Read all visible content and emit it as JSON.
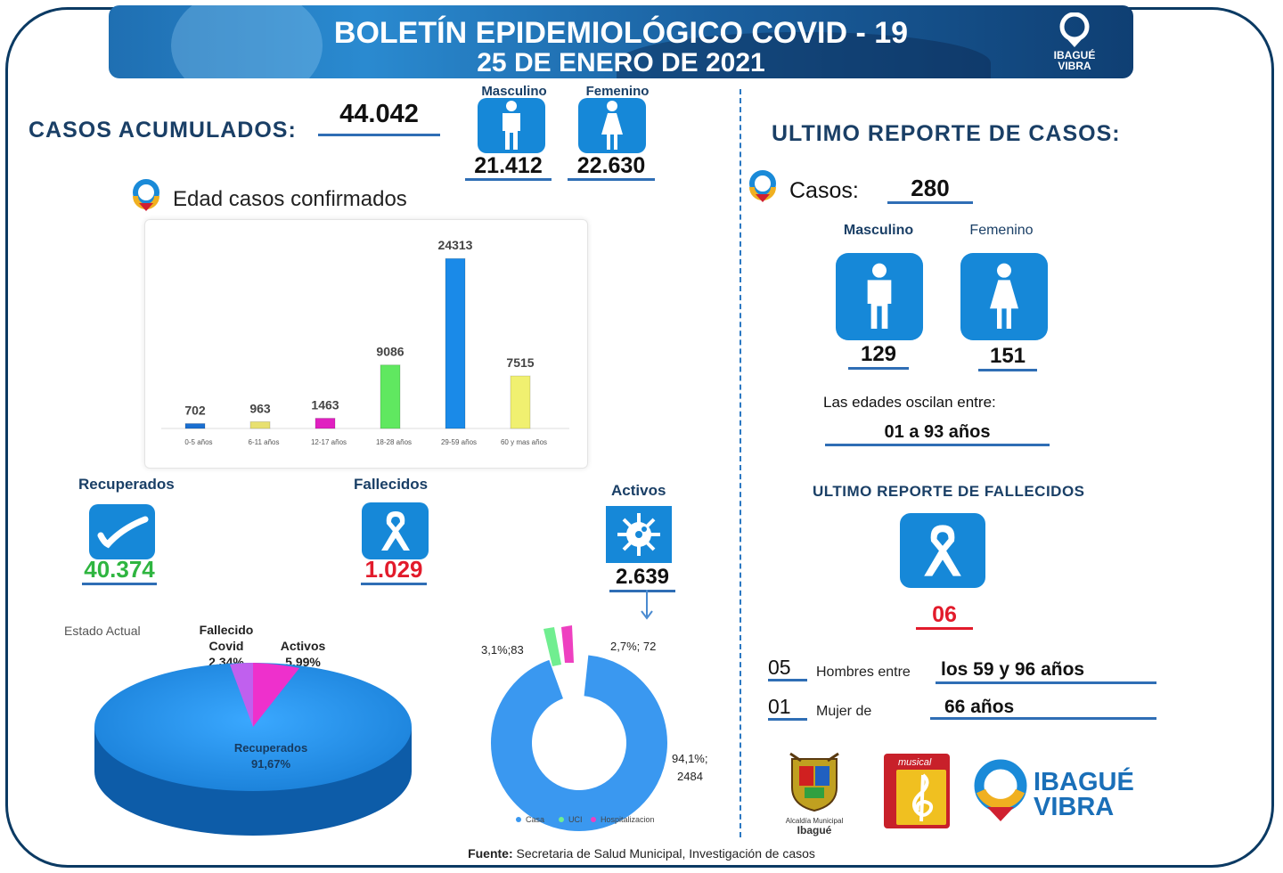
{
  "header": {
    "title": "BOLETÍN EPIDEMIOLÓGICO COVID - 19",
    "date": "25 DE ENERO DE 2021",
    "logo_line1": "IBAGUÉ",
    "logo_line2": "VIBRA"
  },
  "cumulative": {
    "label": "CASOS ACUMULADOS:",
    "total": "44.042",
    "male_label": "Masculino",
    "female_label": "Femenino",
    "male": "21.412",
    "female": "22.630"
  },
  "age_chart": {
    "title": "Edad casos confirmados"
  },
  "chart_data": [
    {
      "type": "bar",
      "title": "Edad casos confirmados",
      "categories": [
        "0-5 años",
        "6-11 años",
        "12-17 años",
        "18-28 años",
        "29-59 años",
        "60 y mas años"
      ],
      "values": [
        702,
        963,
        1463,
        9086,
        24313,
        7515
      ],
      "colors": [
        "#1a6fd0",
        "#e8e070",
        "#e020c0",
        "#60e860",
        "#1a8ae8",
        "#f0f070"
      ],
      "ylim": [
        0,
        26000
      ]
    },
    {
      "type": "pie",
      "title": "Estado Actual",
      "labels": [
        "Recuperados",
        "Fallecido Covid",
        "Activos"
      ],
      "values": [
        91.67,
        2.34,
        5.99
      ],
      "value_labels": [
        "91,67%",
        "2,34%",
        "5,99%"
      ],
      "colors": [
        "#1a90ee",
        "#c060ee",
        "#ee30cc"
      ]
    },
    {
      "type": "pie",
      "subtype": "donut",
      "labels": [
        "Casa",
        "UCI",
        "Hospitalizacion"
      ],
      "values": [
        2484,
        83,
        72
      ],
      "value_labels": [
        "94,1%; 2484",
        "3,1%;83",
        "2,7%; 72"
      ],
      "colors": [
        "#3a98f0",
        "#70ee90",
        "#ee40c0"
      ]
    }
  ],
  "status": {
    "recovered_label": "Recuperados",
    "recovered": "40.374",
    "deceased_label": "Fallecidos",
    "deceased": "1.029",
    "active_label": "Activos",
    "active": "2.639"
  },
  "pie": {
    "title": "Estado Actual",
    "deceased_l1": "Fallecido",
    "deceased_l2": "Covid",
    "deceased_pct": "2,34%",
    "active_label": "Activos",
    "active_pct": "5,99%",
    "recovered_label": "Recuperados",
    "recovered_pct": "91,67%"
  },
  "donut": {
    "casa_label": "94,1%;",
    "casa_value": "2484",
    "uci_label": "3,1%;83",
    "hosp_label": "2,7%; 72",
    "legend": [
      "Casa",
      "UCI",
      "Hospitalizacion"
    ]
  },
  "last_report": {
    "title": "ULTIMO REPORTE DE CASOS:",
    "cases_label": "Casos:",
    "cases": "280",
    "male_label": "Masculino",
    "female_label": "Femenino",
    "male": "129",
    "female": "151",
    "age_text": "Las edades oscilan entre:",
    "age_range": "01 a 93 años"
  },
  "deaths_report": {
    "title": "ULTIMO REPORTE DE FALLECIDOS",
    "total": "06",
    "men_count": "05",
    "men_text": "Hombres entre",
    "men_range": "los 59 y 96 años",
    "women_count": "01",
    "women_text": "Mujer de",
    "women_age": "66 años"
  },
  "logos": {
    "alcaldia_l1": "Alcaldía Municipal",
    "alcaldia_l2": "Ibagué",
    "musical": "musical",
    "ibague_l1": "IBAGUÉ",
    "ibague_l2": "VIBRA"
  },
  "footer": {
    "bold": "Fuente:",
    "text": "Secretaria de Salud Municipal, Investigación de casos"
  }
}
